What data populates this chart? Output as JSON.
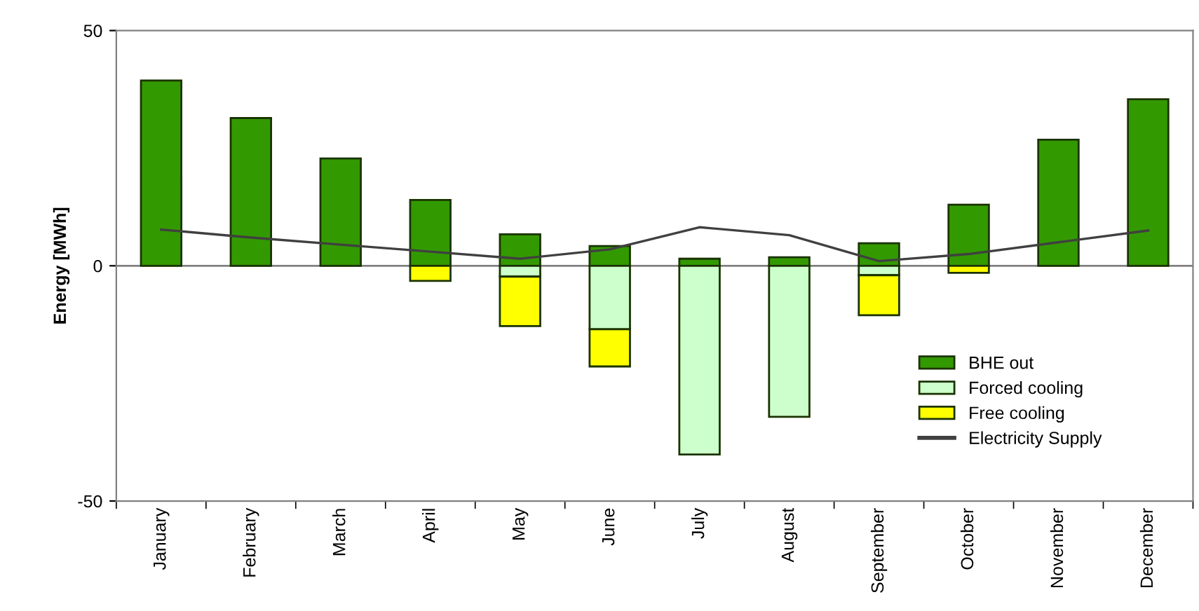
{
  "chart_data": {
    "type": "bar",
    "stacked": true,
    "ylabel": "Energy [MWh]",
    "categories": [
      "January",
      "February",
      "March",
      "April",
      "May",
      "June",
      "July",
      "August",
      "September",
      "October",
      "November",
      "December"
    ],
    "series": [
      {
        "name": "BHE out",
        "color": "#339900",
        "values": [
          39.4,
          31.4,
          22.8,
          14.0,
          6.7,
          4.2,
          1.5,
          1.8,
          4.8,
          13.0,
          26.8,
          35.4
        ]
      },
      {
        "name": "Forced cooling",
        "color": "#ccffcc",
        "values": [
          null,
          null,
          null,
          null,
          -2.3,
          -13.5,
          -40.1,
          -32.1,
          -2.0,
          null,
          null,
          null
        ]
      },
      {
        "name": "Free cooling",
        "color": "#ffff00",
        "values": [
          null,
          null,
          null,
          -3.2,
          -10.5,
          -7.9,
          null,
          null,
          -8.5,
          -1.5,
          null,
          null
        ]
      },
      {
        "name": "Electricity Supply",
        "type": "line",
        "color": "#404040",
        "values": [
          7.7,
          6.0,
          4.5,
          3.0,
          1.5,
          3.5,
          8.2,
          6.5,
          1.0,
          2.5,
          5.0,
          7.5
        ]
      }
    ],
    "ylim": [
      -50,
      50
    ],
    "yticks": [
      -50,
      0,
      50
    ],
    "ref_lines": [
      {
        "axis": "y",
        "value": 0,
        "color": "#808080"
      }
    ],
    "legend": "bottom right",
    "grid": false
  }
}
